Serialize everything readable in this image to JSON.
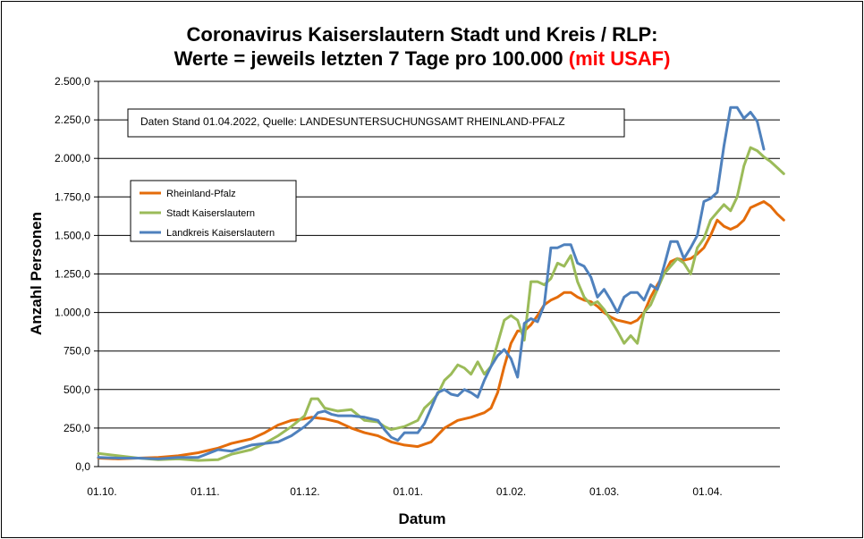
{
  "chart_data": {
    "type": "line",
    "title_line1": "Coronavirus Kaiserslautern Stadt und Kreis / RLP:",
    "title_line2_black": "Werte = jeweils letzten 7 Tage pro 100.000 ",
    "title_line2_red": "(mit USAF)",
    "annotation": "Daten Stand 01.04.2022, Quelle: LANDESUNTERSUCHUNGSAMT RHEINLAND-PFALZ",
    "xlabel": "Datum",
    "ylabel": "Anzahl Personen",
    "ylim": [
      0,
      2500
    ],
    "yticks": [
      0,
      250,
      500,
      750,
      1000,
      1250,
      1500,
      1750,
      2000,
      2250,
      2500
    ],
    "ytick_labels": [
      "0,0",
      "250,0",
      "500,0",
      "750,0",
      "1.000,0",
      "1.250,0",
      "1.500,0",
      "1.750,0",
      "2.000,0",
      "2.250,0",
      "2.500,0"
    ],
    "xtick_labels": [
      "01.10.",
      "01.11.",
      "01.12.",
      "01.01.",
      "01.02.",
      "01.03.",
      "01.04."
    ],
    "xtick_days": [
      0,
      31,
      61,
      92,
      123,
      151,
      182
    ],
    "x_unit": "Tage ab 01.10.",
    "grid": "horizontal",
    "legend_position": "upper-left",
    "series": [
      {
        "name": "Rheinland-Pfalz",
        "color": "#E46C0A",
        "points": [
          [
            0,
            55
          ],
          [
            6,
            50
          ],
          [
            12,
            55
          ],
          [
            18,
            60
          ],
          [
            24,
            70
          ],
          [
            30,
            90
          ],
          [
            36,
            120
          ],
          [
            40,
            150
          ],
          [
            46,
            180
          ],
          [
            50,
            220
          ],
          [
            54,
            270
          ],
          [
            58,
            300
          ],
          [
            62,
            310
          ],
          [
            64,
            320
          ],
          [
            68,
            310
          ],
          [
            72,
            290
          ],
          [
            76,
            250
          ],
          [
            80,
            220
          ],
          [
            84,
            200
          ],
          [
            88,
            160
          ],
          [
            92,
            140
          ],
          [
            96,
            130
          ],
          [
            100,
            160
          ],
          [
            104,
            250
          ],
          [
            108,
            300
          ],
          [
            112,
            320
          ],
          [
            116,
            350
          ],
          [
            118,
            380
          ],
          [
            120,
            480
          ],
          [
            122,
            650
          ],
          [
            124,
            800
          ],
          [
            126,
            880
          ],
          [
            128,
            880
          ],
          [
            130,
            920
          ],
          [
            132,
            980
          ],
          [
            134,
            1050
          ],
          [
            136,
            1080
          ],
          [
            138,
            1100
          ],
          [
            140,
            1130
          ],
          [
            142,
            1130
          ],
          [
            144,
            1100
          ],
          [
            146,
            1080
          ],
          [
            148,
            1070
          ],
          [
            150,
            1040
          ],
          [
            152,
            1000
          ],
          [
            154,
            970
          ],
          [
            156,
            950
          ],
          [
            158,
            940
          ],
          [
            160,
            930
          ],
          [
            162,
            950
          ],
          [
            164,
            1000
          ],
          [
            166,
            1100
          ],
          [
            168,
            1180
          ],
          [
            170,
            1250
          ],
          [
            172,
            1330
          ],
          [
            174,
            1350
          ],
          [
            176,
            1340
          ],
          [
            178,
            1350
          ],
          [
            180,
            1380
          ],
          [
            182,
            1420
          ],
          [
            184,
            1500
          ],
          [
            186,
            1600
          ],
          [
            188,
            1560
          ],
          [
            190,
            1540
          ],
          [
            192,
            1560
          ],
          [
            194,
            1600
          ],
          [
            196,
            1680
          ],
          [
            198,
            1700
          ],
          [
            200,
            1720
          ],
          [
            202,
            1690
          ],
          [
            204,
            1640
          ],
          [
            206,
            1600
          ]
        ]
      },
      {
        "name": "Stadt Kaiserslautern",
        "color": "#9BBB59",
        "points": [
          [
            0,
            85
          ],
          [
            6,
            70
          ],
          [
            12,
            55
          ],
          [
            18,
            45
          ],
          [
            24,
            50
          ],
          [
            30,
            40
          ],
          [
            36,
            45
          ],
          [
            40,
            80
          ],
          [
            46,
            110
          ],
          [
            50,
            150
          ],
          [
            54,
            200
          ],
          [
            58,
            260
          ],
          [
            62,
            330
          ],
          [
            64,
            440
          ],
          [
            66,
            440
          ],
          [
            68,
            380
          ],
          [
            72,
            360
          ],
          [
            76,
            370
          ],
          [
            80,
            300
          ],
          [
            84,
            290
          ],
          [
            86,
            260
          ],
          [
            88,
            240
          ],
          [
            92,
            260
          ],
          [
            96,
            300
          ],
          [
            98,
            380
          ],
          [
            100,
            420
          ],
          [
            102,
            470
          ],
          [
            104,
            560
          ],
          [
            106,
            600
          ],
          [
            108,
            660
          ],
          [
            110,
            640
          ],
          [
            112,
            600
          ],
          [
            114,
            680
          ],
          [
            116,
            600
          ],
          [
            118,
            650
          ],
          [
            120,
            800
          ],
          [
            122,
            950
          ],
          [
            124,
            980
          ],
          [
            126,
            950
          ],
          [
            128,
            820
          ],
          [
            130,
            1200
          ],
          [
            132,
            1200
          ],
          [
            134,
            1180
          ],
          [
            136,
            1220
          ],
          [
            138,
            1320
          ],
          [
            140,
            1300
          ],
          [
            142,
            1370
          ],
          [
            144,
            1200
          ],
          [
            146,
            1100
          ],
          [
            148,
            1050
          ],
          [
            150,
            1070
          ],
          [
            152,
            1020
          ],
          [
            154,
            950
          ],
          [
            156,
            880
          ],
          [
            158,
            800
          ],
          [
            160,
            850
          ],
          [
            162,
            800
          ],
          [
            164,
            1000
          ],
          [
            166,
            1050
          ],
          [
            168,
            1150
          ],
          [
            170,
            1250
          ],
          [
            172,
            1300
          ],
          [
            174,
            1350
          ],
          [
            176,
            1320
          ],
          [
            178,
            1250
          ],
          [
            180,
            1420
          ],
          [
            182,
            1480
          ],
          [
            184,
            1600
          ],
          [
            186,
            1650
          ],
          [
            188,
            1700
          ],
          [
            190,
            1660
          ],
          [
            192,
            1750
          ],
          [
            194,
            1950
          ],
          [
            196,
            2070
          ],
          [
            198,
            2050
          ],
          [
            200,
            2010
          ],
          [
            202,
            1980
          ],
          [
            204,
            1940
          ],
          [
            206,
            1900
          ]
        ]
      },
      {
        "name": "Landkreis Kaiserslautern",
        "color": "#4F81BD",
        "points": [
          [
            0,
            60
          ],
          [
            6,
            55
          ],
          [
            12,
            55
          ],
          [
            18,
            50
          ],
          [
            24,
            60
          ],
          [
            30,
            60
          ],
          [
            36,
            110
          ],
          [
            40,
            100
          ],
          [
            46,
            140
          ],
          [
            50,
            150
          ],
          [
            54,
            160
          ],
          [
            58,
            200
          ],
          [
            62,
            260
          ],
          [
            64,
            300
          ],
          [
            66,
            350
          ],
          [
            68,
            360
          ],
          [
            70,
            340
          ],
          [
            72,
            330
          ],
          [
            76,
            330
          ],
          [
            80,
            320
          ],
          [
            84,
            300
          ],
          [
            86,
            240
          ],
          [
            88,
            190
          ],
          [
            90,
            170
          ],
          [
            92,
            220
          ],
          [
            96,
            220
          ],
          [
            98,
            280
          ],
          [
            100,
            380
          ],
          [
            102,
            480
          ],
          [
            104,
            500
          ],
          [
            106,
            470
          ],
          [
            108,
            460
          ],
          [
            110,
            500
          ],
          [
            112,
            480
          ],
          [
            114,
            450
          ],
          [
            116,
            560
          ],
          [
            118,
            650
          ],
          [
            120,
            720
          ],
          [
            122,
            760
          ],
          [
            124,
            700
          ],
          [
            126,
            580
          ],
          [
            128,
            930
          ],
          [
            130,
            960
          ],
          [
            132,
            940
          ],
          [
            134,
            1050
          ],
          [
            136,
            1420
          ],
          [
            138,
            1420
          ],
          [
            140,
            1440
          ],
          [
            142,
            1440
          ],
          [
            144,
            1320
          ],
          [
            146,
            1300
          ],
          [
            148,
            1230
          ],
          [
            150,
            1100
          ],
          [
            152,
            1150
          ],
          [
            154,
            1080
          ],
          [
            156,
            1000
          ],
          [
            158,
            1100
          ],
          [
            160,
            1130
          ],
          [
            162,
            1130
          ],
          [
            164,
            1080
          ],
          [
            166,
            1180
          ],
          [
            168,
            1150
          ],
          [
            170,
            1300
          ],
          [
            172,
            1460
          ],
          [
            174,
            1460
          ],
          [
            176,
            1350
          ],
          [
            178,
            1420
          ],
          [
            180,
            1500
          ],
          [
            182,
            1720
          ],
          [
            184,
            1740
          ],
          [
            186,
            1780
          ],
          [
            188,
            2080
          ],
          [
            190,
            2330
          ],
          [
            192,
            2330
          ],
          [
            194,
            2260
          ],
          [
            196,
            2300
          ],
          [
            198,
            2240
          ],
          [
            200,
            2060
          ]
        ]
      }
    ]
  }
}
